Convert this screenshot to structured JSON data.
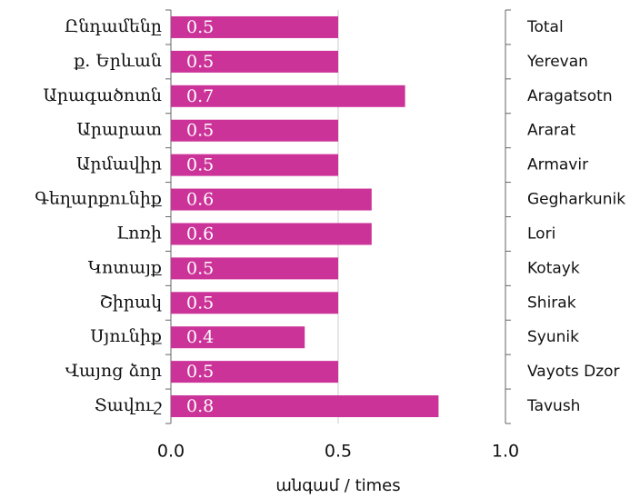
{
  "chart_data": {
    "type": "bar",
    "orientation": "horizontal",
    "categories": [
      "Ընդամենը",
      "ք. Երևան",
      "Արագածոտն",
      "Արարատ",
      "Արմավիր",
      "Գեղարքունիք",
      "Լոռի",
      "Կոտայք",
      "Շիրակ",
      "Սյունիք",
      "Վայոց ձոր",
      "Տավուշ"
    ],
    "secondary_categories": [
      "Total",
      "Yerevan",
      "Aragatsotn",
      "Ararat",
      "Armavir",
      "Gegharkunik",
      "Lori",
      "Kotayk",
      "Shirak",
      "Syunik",
      "Vayots Dzor",
      "Tavush"
    ],
    "values": [
      0.5,
      0.5,
      0.7,
      0.5,
      0.5,
      0.6,
      0.6,
      0.5,
      0.5,
      0.4,
      0.5,
      0.8
    ],
    "color": "#cc3399",
    "xlim": [
      0,
      1
    ],
    "xticks": [
      {
        "value": 0,
        "label": "0.0"
      },
      0.5,
      {
        "value": 1,
        "label": "1.0"
      }
    ],
    "x_label": "անգամ / times",
    "grid": true
  }
}
